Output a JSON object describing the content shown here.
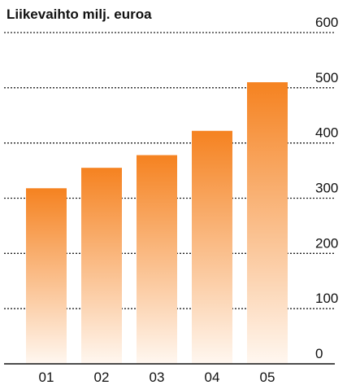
{
  "chart_data": {
    "type": "bar",
    "title": "Liikevaihto milj. euroa",
    "xlabel": "",
    "ylabel": "",
    "categories": [
      "01",
      "02",
      "03",
      "04",
      "05"
    ],
    "values": [
      318,
      355,
      378,
      422,
      510
    ],
    "ylim": [
      0,
      600
    ],
    "yticks": [
      "0",
      "100",
      "200",
      "300",
      "400",
      "500",
      "600"
    ],
    "grid": true,
    "legend": "none",
    "colors": {
      "bar_top": "#F58220",
      "bar_bottom": "#FFF7F0",
      "text": "#111111",
      "grid": "#222222"
    }
  }
}
